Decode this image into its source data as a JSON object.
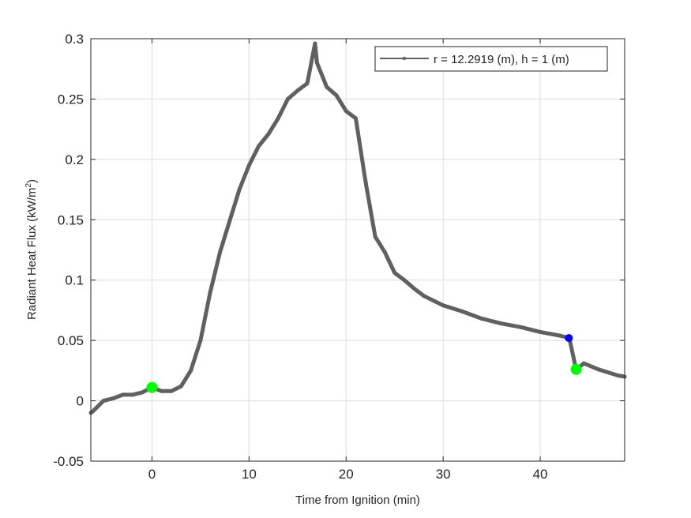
{
  "chart_data": {
    "type": "line",
    "title": "",
    "xlabel": "Time from Ignition (min)",
    "ylabel": "Radiant Heat Flux (kW/m",
    "ylabel_sup": "2",
    "ylabel_end": ")",
    "xlim": [
      -6.3,
      48.7
    ],
    "ylim": [
      -0.05,
      0.3
    ],
    "xticks": [
      0,
      10,
      20,
      30,
      40
    ],
    "xtick_labels": [
      "0",
      "10",
      "20",
      "30",
      "40"
    ],
    "yticks": [
      -0.05,
      0,
      0.05,
      0.1,
      0.15,
      0.2,
      0.25,
      0.3
    ],
    "ytick_labels": [
      "-0.05",
      "0",
      "0.05",
      "0.1",
      "0.15",
      "0.2",
      "0.25",
      "0.3"
    ],
    "grid": true,
    "legend_position": "top-right",
    "series": [
      {
        "name": "r = 12.2919 (m), h = 1 (m)",
        "color": "#606060",
        "x": [
          -6.3,
          -6,
          -5,
          -4,
          -3,
          -2,
          -1,
          0,
          1,
          2,
          3,
          4,
          5,
          6,
          7,
          8,
          9,
          10,
          11,
          12,
          13,
          14,
          15,
          16,
          16.8,
          17,
          18,
          19,
          20,
          21,
          22,
          23,
          24,
          25,
          26,
          27,
          28,
          29,
          30,
          32,
          34,
          36,
          38,
          40,
          42,
          43,
          43.7,
          44.5,
          46,
          48,
          48.7
        ],
        "y": [
          -0.01,
          -0.008,
          0,
          0.002,
          0.005,
          0.005,
          0.007,
          0.011,
          0.008,
          0.008,
          0.012,
          0.025,
          0.05,
          0.09,
          0.123,
          0.149,
          0.175,
          0.195,
          0.211,
          0.221,
          0.234,
          0.25,
          0.257,
          0.263,
          0.296,
          0.28,
          0.26,
          0.253,
          0.24,
          0.234,
          0.182,
          0.136,
          0.123,
          0.106,
          0.1,
          0.093,
          0.087,
          0.083,
          0.079,
          0.074,
          0.068,
          0.064,
          0.061,
          0.057,
          0.054,
          0.052,
          0.026,
          0.031,
          0.026,
          0.021,
          0.02
        ]
      }
    ],
    "markers": [
      {
        "x": 0,
        "y": 0.011,
        "color": "#00ff00"
      },
      {
        "x": 42.95,
        "y": 0.052,
        "color": "#0000ff"
      },
      {
        "x": 43.7,
        "y": 0.026,
        "color": "#00ff00"
      }
    ]
  }
}
